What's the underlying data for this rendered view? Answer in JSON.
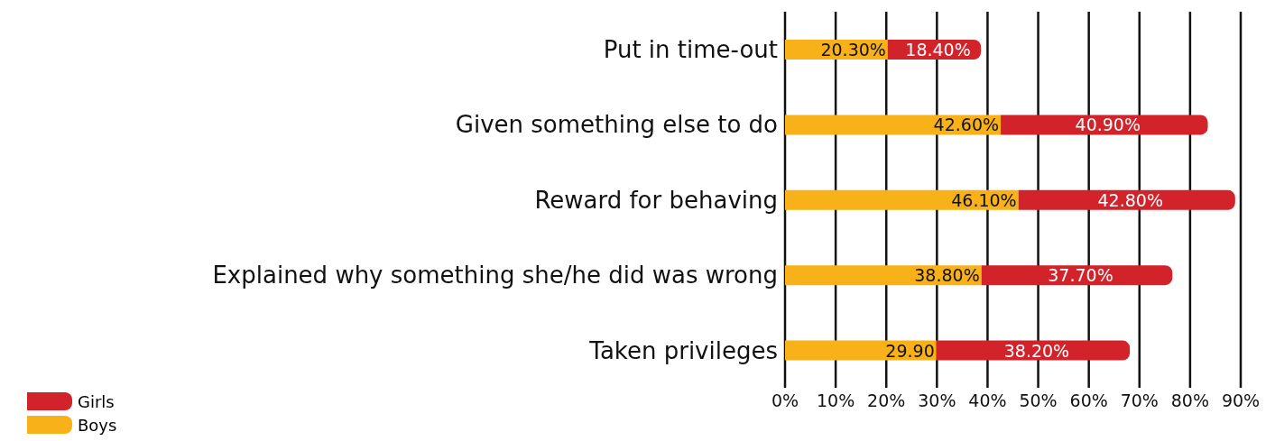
{
  "chart_data": {
    "type": "bar",
    "orientation": "horizontal",
    "stacked": true,
    "categories": [
      "Put in time-out",
      "Given something else to do",
      "Reward for behaving",
      "Explained why something she/he did was wrong",
      "Taken privileges"
    ],
    "series": [
      {
        "name": "Boys",
        "color": "#f9b11a",
        "values": [
          20.3,
          42.6,
          46.1,
          38.8,
          29.9
        ],
        "value_labels": [
          "20.30%",
          "42.60%",
          "46.10%",
          "38.80%",
          "29.90"
        ]
      },
      {
        "name": "Girls",
        "color": "#d2232a",
        "values": [
          18.4,
          40.9,
          42.8,
          37.7,
          38.2
        ],
        "value_labels": [
          "18.40%",
          "40.90%",
          "42.80%",
          "37.70%",
          "38.20%"
        ]
      }
    ],
    "xlim": [
      0,
      90
    ],
    "xticks": [
      {
        "value": 0,
        "label": "0%"
      },
      {
        "value": 10,
        "label": "10%"
      },
      {
        "value": 20,
        "label": "20%"
      },
      {
        "value": 30,
        "label": "30%"
      },
      {
        "value": 40,
        "label": "40%"
      },
      {
        "value": 50,
        "label": "50%"
      },
      {
        "value": 60,
        "label": "60%"
      },
      {
        "value": 70,
        "label": "70%"
      },
      {
        "value": 80,
        "label": "80%"
      },
      {
        "value": 90,
        "label": "90%"
      }
    ],
    "grid": "x",
    "legend": "bottom left"
  }
}
